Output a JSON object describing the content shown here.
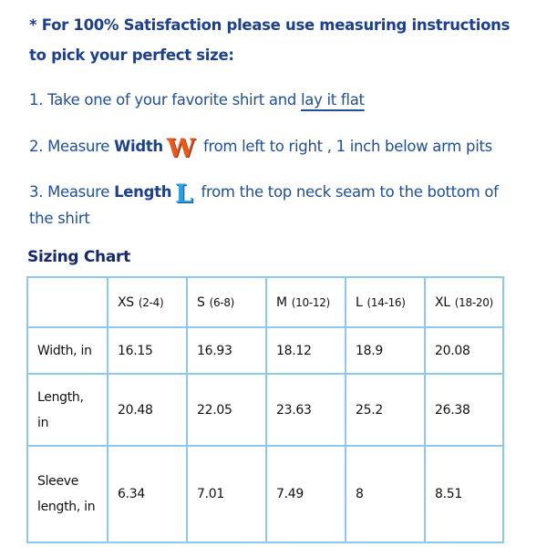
{
  "intro": {
    "line1": "* For 100% Satisfaction please use measuring instructions",
    "line2": "to pick your perfect size:"
  },
  "steps": [
    {
      "prefix": "1. Take one of your favorite shirt and ",
      "link": "lay it flat"
    },
    {
      "prefix": "2. Measure ",
      "bold": "Width",
      "icon_letter": "W",
      "suffix": " from left to right , 1 inch below arm pits"
    },
    {
      "prefix": "3. Measure ",
      "bold": "Length",
      "icon_letter": "L",
      "suffix": " from the top neck seam to the bottom of",
      "continuation": "the shirt"
    }
  ],
  "colors": {
    "text": "#1f4e9c",
    "border": "#8cc8f0",
    "width_icon": "#e85a1c",
    "length_icon": "#2a9ee8"
  },
  "sizing_chart": {
    "title": "Sizing Chart",
    "headers": [
      {
        "size": "XS",
        "range": "(2-4)"
      },
      {
        "size": "S",
        "range": "(6-8)"
      },
      {
        "size": "M",
        "range": "(10-12)"
      },
      {
        "size": "L",
        "range": "(14-16)"
      },
      {
        "size": "XL",
        "range": "(18-20)"
      }
    ],
    "rows": [
      {
        "label": "Width, in",
        "values": [
          "16.15",
          "16.93",
          "18.12",
          "18.9",
          "20.08"
        ]
      },
      {
        "label": "Length, in",
        "values": [
          "20.48",
          "22.05",
          "23.63",
          "25.2",
          "26.38"
        ]
      },
      {
        "label": "Sleeve length, in",
        "values": [
          "6.34",
          "7.01",
          "7.49",
          "8",
          "8.51"
        ]
      }
    ]
  }
}
